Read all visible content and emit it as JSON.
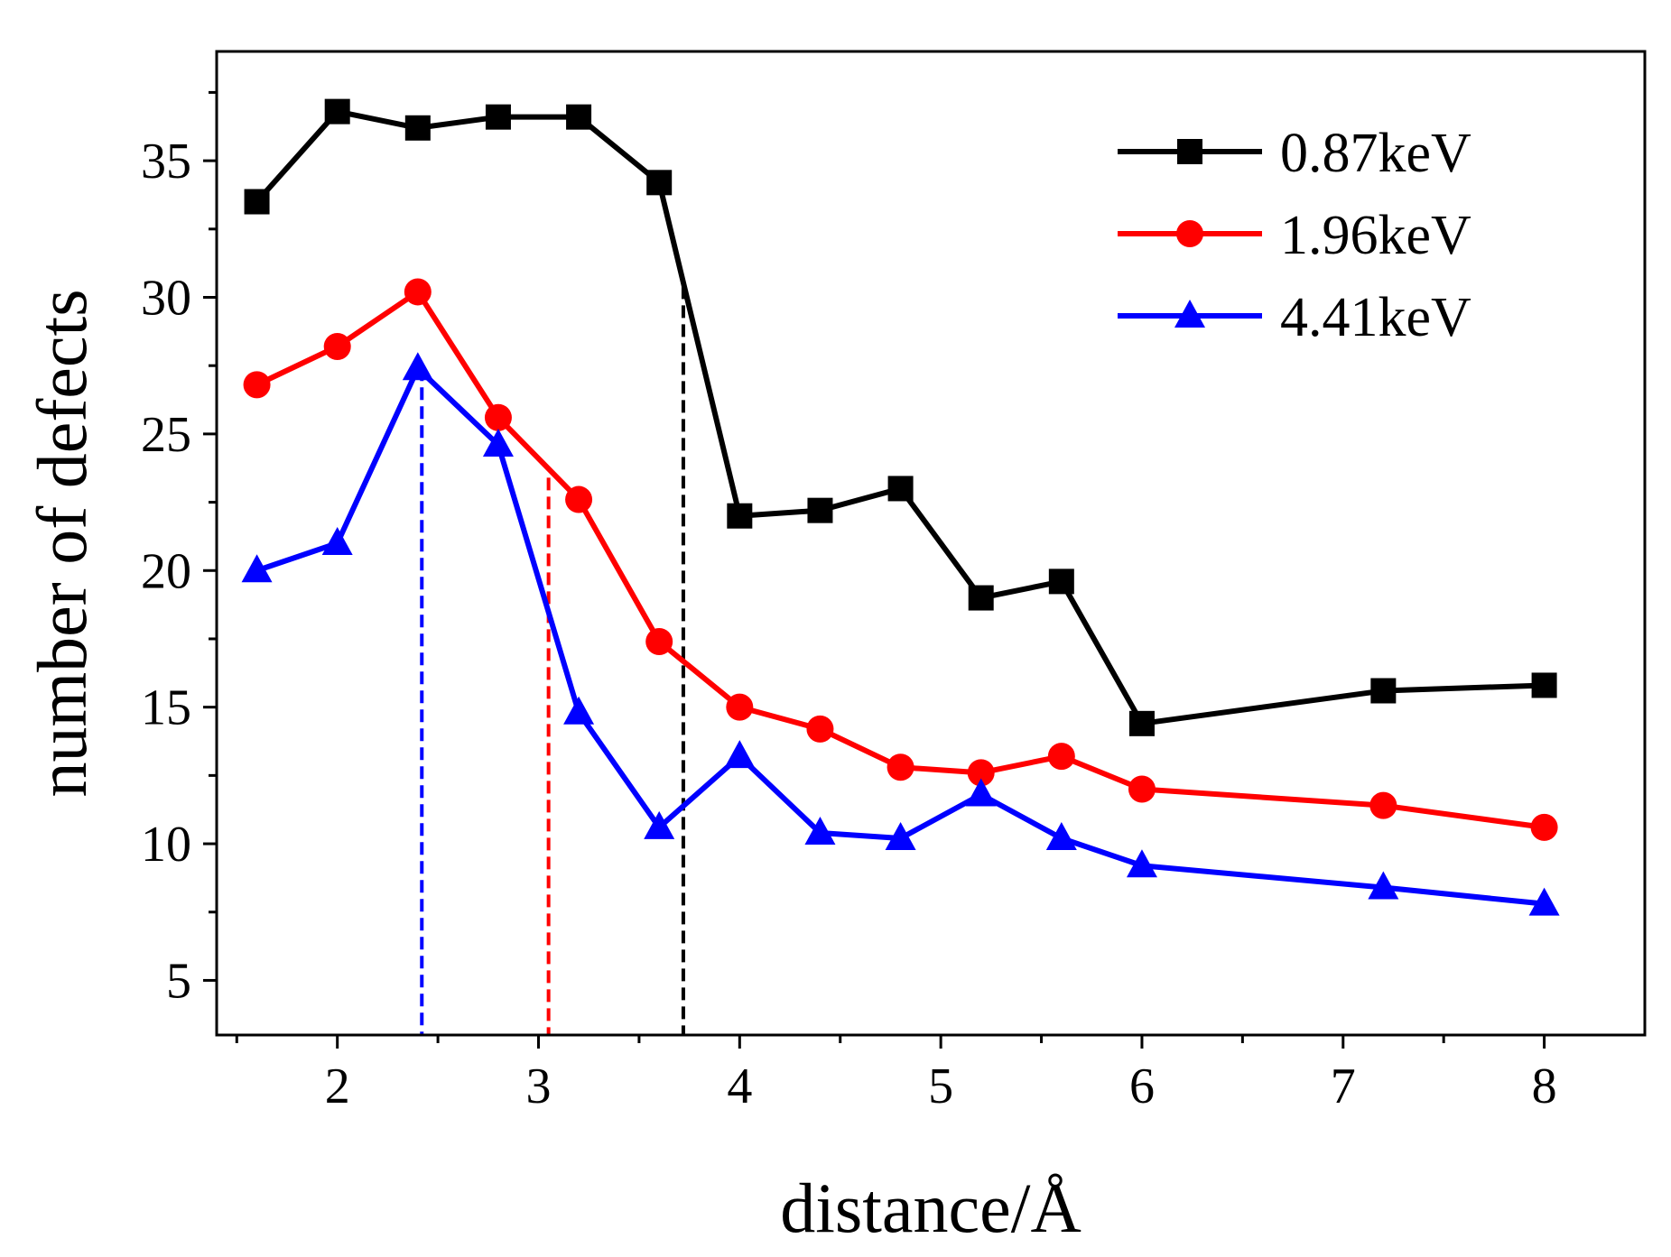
{
  "chart_data": {
    "type": "line",
    "title": "",
    "xlabel": "distance/Å",
    "ylabel": "number of defects",
    "xlim": [
      1.4,
      8.5
    ],
    "ylim": [
      3,
      39
    ],
    "xticks": [
      2,
      3,
      4,
      5,
      6,
      7,
      8
    ],
    "xtick_labels": [
      "2",
      "3",
      "4",
      "5",
      "6",
      "7",
      "8"
    ],
    "xminor": [
      1.5,
      2.5,
      3.5,
      4.5,
      5.5,
      6.5,
      7.5
    ],
    "yticks": [
      5,
      10,
      15,
      20,
      25,
      30,
      35
    ],
    "ytick_labels": [
      "5",
      "10",
      "15",
      "20",
      "25",
      "30",
      "35"
    ],
    "yminor": [
      7.5,
      12.5,
      17.5,
      22.5,
      27.5,
      32.5,
      37.5
    ],
    "grid": false,
    "legend_position": "top-right",
    "series": [
      {
        "name": "0.87keV",
        "color": "#000000",
        "marker": "square",
        "x": [
          1.6,
          2.0,
          2.4,
          2.8,
          3.2,
          3.6,
          4.0,
          4.4,
          4.8,
          5.2,
          5.6,
          6.0,
          7.2,
          8.0
        ],
        "y": [
          33.5,
          36.8,
          36.2,
          36.6,
          36.6,
          34.2,
          22.0,
          22.2,
          23.0,
          19.0,
          19.6,
          14.4,
          15.6,
          15.8
        ]
      },
      {
        "name": "1.96keV",
        "color": "#ff0000",
        "marker": "circle",
        "x": [
          1.6,
          2.0,
          2.4,
          2.8,
          3.2,
          3.6,
          4.0,
          4.4,
          4.8,
          5.2,
          5.6,
          6.0,
          7.2,
          8.0
        ],
        "y": [
          26.8,
          28.2,
          30.2,
          25.6,
          22.6,
          17.4,
          15.0,
          14.2,
          12.8,
          12.6,
          13.2,
          12.0,
          11.4,
          10.6
        ]
      },
      {
        "name": "4.41keV",
        "color": "#0000ff",
        "marker": "triangle",
        "x": [
          1.6,
          2.0,
          2.4,
          2.8,
          3.2,
          3.6,
          4.0,
          4.4,
          4.8,
          5.2,
          5.6,
          6.0,
          7.2,
          8.0
        ],
        "y": [
          20.0,
          21.0,
          27.4,
          24.6,
          14.8,
          10.6,
          13.2,
          10.4,
          10.2,
          11.8,
          10.2,
          9.2,
          8.4,
          7.8
        ]
      }
    ],
    "reference_lines": [
      {
        "series": "4.41keV",
        "color": "#0000ff",
        "x": 2.42,
        "y_top": 27.4
      },
      {
        "series": "1.96keV",
        "color": "#ff0000",
        "x": 3.05,
        "y_top": 23.4
      },
      {
        "series": "0.87keV",
        "color": "#000000",
        "x": 3.72,
        "y_top": 30.4
      }
    ]
  }
}
